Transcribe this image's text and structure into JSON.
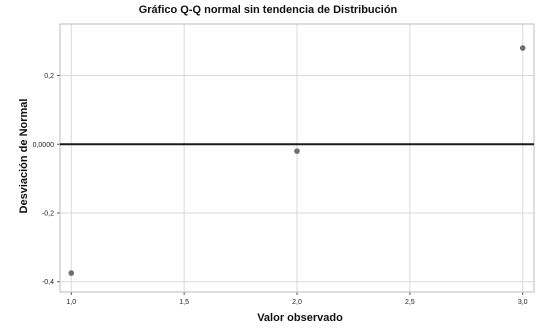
{
  "chart_data": {
    "type": "scatter",
    "title": "Gráfico Q-Q normal sin tendencia de Distribución",
    "xlabel": "Valor observado",
    "ylabel": "Desviación de Normal",
    "xlim": [
      0.95,
      3.05
    ],
    "ylim": [
      -0.43,
      0.35
    ],
    "x_ticks": [
      1.0,
      1.5,
      2.0,
      2.5,
      3.0
    ],
    "x_tick_labels": [
      "1,0",
      "1,5",
      "2,0",
      "2,5",
      "3,0"
    ],
    "y_ticks": [
      -0.4,
      -0.2,
      0.0,
      0.2
    ],
    "y_tick_labels": [
      "-0,4",
      "-0,2",
      "0,0000",
      "0,2"
    ],
    "grid": true,
    "reference_line_y": 0.0,
    "points": [
      {
        "x": 1.0,
        "y": -0.375
      },
      {
        "x": 2.0,
        "y": -0.02
      },
      {
        "x": 3.0,
        "y": 0.28
      }
    ],
    "colors": {
      "points": "#6e6e6e",
      "reference_line": "#1a1a1a",
      "grid": "#d9d9d9",
      "frame": "#bdbdbd"
    }
  }
}
